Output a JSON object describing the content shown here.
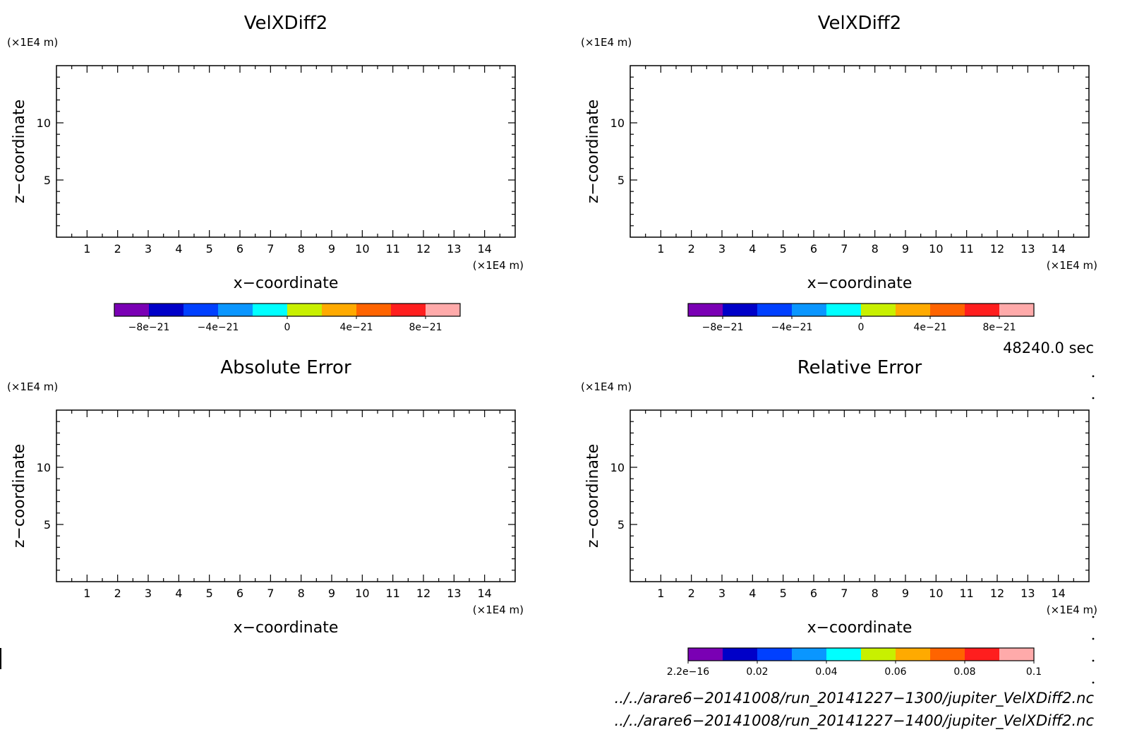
{
  "chart_data": [
    {
      "type": "heatmap",
      "title": "VelXDiff2",
      "xlabel": "x−coordinate",
      "ylabel": "z−coordinate",
      "x_unit": "(×1E4 m)",
      "y_unit": "(×1E4 m)",
      "xlim": [
        0,
        15
      ],
      "ylim": [
        0,
        15
      ],
      "xticks": [
        1,
        2,
        3,
        4,
        5,
        6,
        7,
        8,
        9,
        10,
        11,
        12,
        13,
        14
      ],
      "yticks": [
        5,
        10
      ],
      "colorbar": {
        "colors": [
          "#7a00b4",
          "#0000c8",
          "#0040ff",
          "#0a96ff",
          "#00ffff",
          "#c8f000",
          "#ffaa00",
          "#ff6400",
          "#ff1e1e",
          "#ffaaaa"
        ],
        "labels": [
          "−8e−21",
          "−4e−21",
          "0",
          "4e−21",
          "8e−21"
        ],
        "label_positions": [
          1,
          3,
          5,
          7,
          9
        ]
      }
    },
    {
      "type": "heatmap",
      "title": "VelXDiff2",
      "xlabel": "x−coordinate",
      "ylabel": "z−coordinate",
      "x_unit": "(×1E4 m)",
      "y_unit": "(×1E4 m)",
      "xlim": [
        0,
        15
      ],
      "ylim": [
        0,
        15
      ],
      "xticks": [
        1,
        2,
        3,
        4,
        5,
        6,
        7,
        8,
        9,
        10,
        11,
        12,
        13,
        14
      ],
      "yticks": [
        5,
        10
      ],
      "colorbar": {
        "colors": [
          "#7a00b4",
          "#0000c8",
          "#0040ff",
          "#0a96ff",
          "#00ffff",
          "#c8f000",
          "#ffaa00",
          "#ff6400",
          "#ff1e1e",
          "#ffaaaa"
        ],
        "labels": [
          "−8e−21",
          "−4e−21",
          "0",
          "4e−21",
          "8e−21"
        ],
        "label_positions": [
          1,
          3,
          5,
          7,
          9
        ]
      }
    },
    {
      "type": "heatmap",
      "title": "Absolute Error",
      "xlabel": "x−coordinate",
      "ylabel": "z−coordinate",
      "x_unit": "(×1E4 m)",
      "y_unit": "(×1E4 m)",
      "xlim": [
        0,
        15
      ],
      "ylim": [
        0,
        15
      ],
      "xticks": [
        1,
        2,
        3,
        4,
        5,
        6,
        7,
        8,
        9,
        10,
        11,
        12,
        13,
        14
      ],
      "yticks": [
        5,
        10
      ]
    },
    {
      "type": "heatmap",
      "title": "Relative Error",
      "xlabel": "x−coordinate",
      "ylabel": "z−coordinate",
      "x_unit": "(×1E4 m)",
      "y_unit": "(×1E4 m)",
      "xlim": [
        0,
        15
      ],
      "ylim": [
        0,
        15
      ],
      "xticks": [
        1,
        2,
        3,
        4,
        5,
        6,
        7,
        8,
        9,
        10,
        11,
        12,
        13,
        14
      ],
      "yticks": [
        5,
        10
      ],
      "colorbar": {
        "colors": [
          "#7a00b4",
          "#0000c8",
          "#0040ff",
          "#0a96ff",
          "#00ffff",
          "#c8f000",
          "#ffaa00",
          "#ff6400",
          "#ff1e1e",
          "#ffaaaa"
        ],
        "labels": [
          "2.2e−16",
          "0.02",
          "0.04",
          "0.06",
          "0.08",
          "0.1"
        ],
        "label_positions": [
          0,
          2,
          4,
          6,
          8,
          10
        ]
      }
    }
  ],
  "time_label": "48240.0 sec",
  "footer": [
    "../../arare6−20141008/run_20141227−1300/jupiter_VelXDiff2.nc",
    "../../arare6−20141008/run_20141227−1400/jupiter_VelXDiff2.nc"
  ]
}
